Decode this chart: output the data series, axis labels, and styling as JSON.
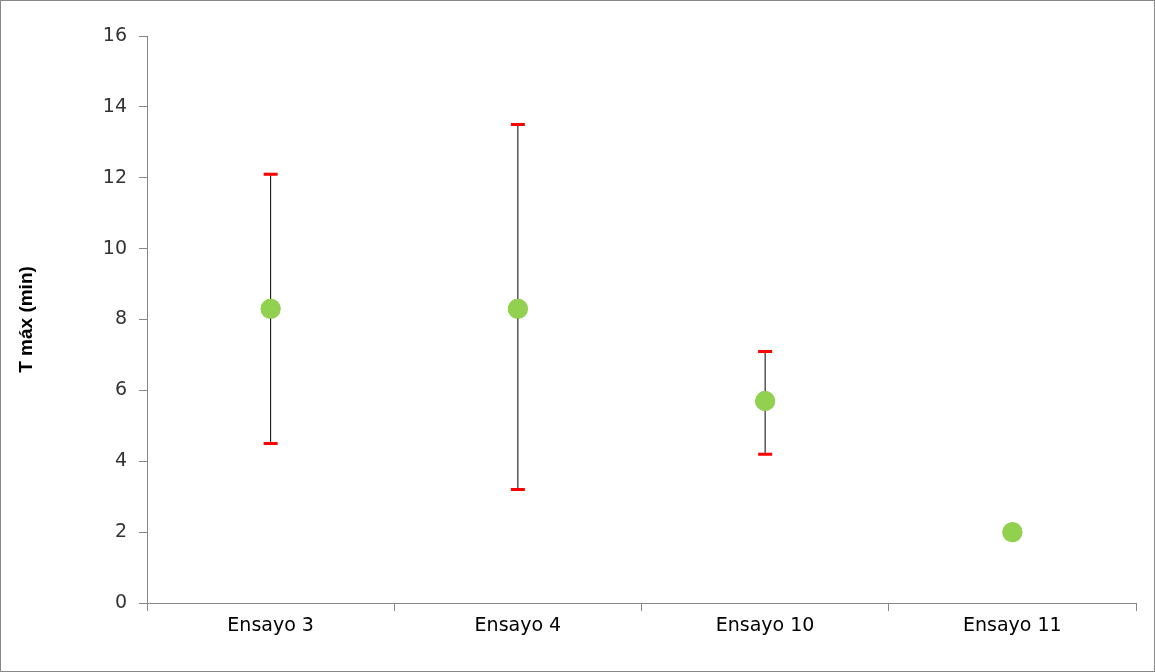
{
  "chart_data": {
    "type": "scatter",
    "ylabel": "T máx (min)",
    "categories": [
      "Ensayo 3",
      "Ensayo 4",
      "Ensayo 10",
      "Ensayo 11"
    ],
    "series": [
      {
        "color": "#92d050",
        "values": [
          8.3,
          8.3,
          5.7,
          2.0
        ],
        "errors": [
          [
            4.5,
            12.1
          ],
          [
            3.2,
            13.5
          ],
          [
            4.2,
            7.1
          ],
          null
        ]
      }
    ],
    "ylim": [
      0,
      16
    ],
    "yticks": [
      0,
      2,
      4,
      6,
      8,
      10,
      12,
      14,
      16
    ],
    "grid": false,
    "legend": false,
    "marker": "circle"
  }
}
